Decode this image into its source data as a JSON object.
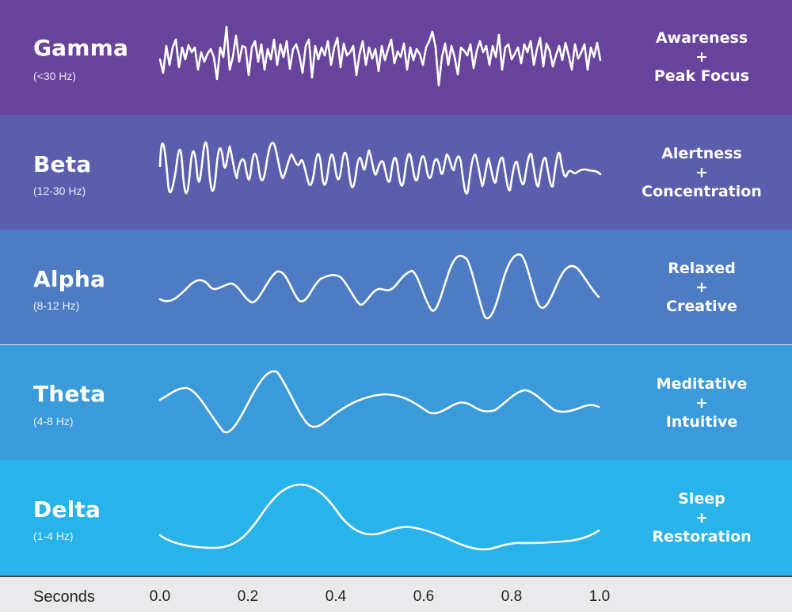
{
  "bands": [
    {
      "name": "Gamma",
      "range": "(<30 Hz)",
      "state": [
        "Awareness",
        "+",
        "Peak Focus"
      ],
      "color": "#67439b"
    },
    {
      "name": "Beta",
      "range": "(12-30 Hz)",
      "state": [
        "Alertness",
        "+",
        "Concentration"
      ],
      "color": "#5a5ead"
    },
    {
      "name": "Alpha",
      "range": "(8-12 Hz)",
      "state": [
        "Relaxed",
        "+",
        "Creative"
      ],
      "color": "#4d7cc5"
    },
    {
      "name": "Theta",
      "range": "(4-8 Hz)",
      "state": [
        "Meditative",
        "+",
        "Intuitive"
      ],
      "color": "#3b9ad9"
    },
    {
      "name": "Delta",
      "range": "(1-4 Hz)",
      "state": [
        "Sleep",
        "+",
        "Restoration"
      ],
      "color": "#28b3ea"
    }
  ],
  "axis": {
    "label": "Seconds",
    "ticks": [
      "0.0",
      "0.2",
      "0.4",
      "0.6",
      "0.8",
      "1.0"
    ]
  }
}
